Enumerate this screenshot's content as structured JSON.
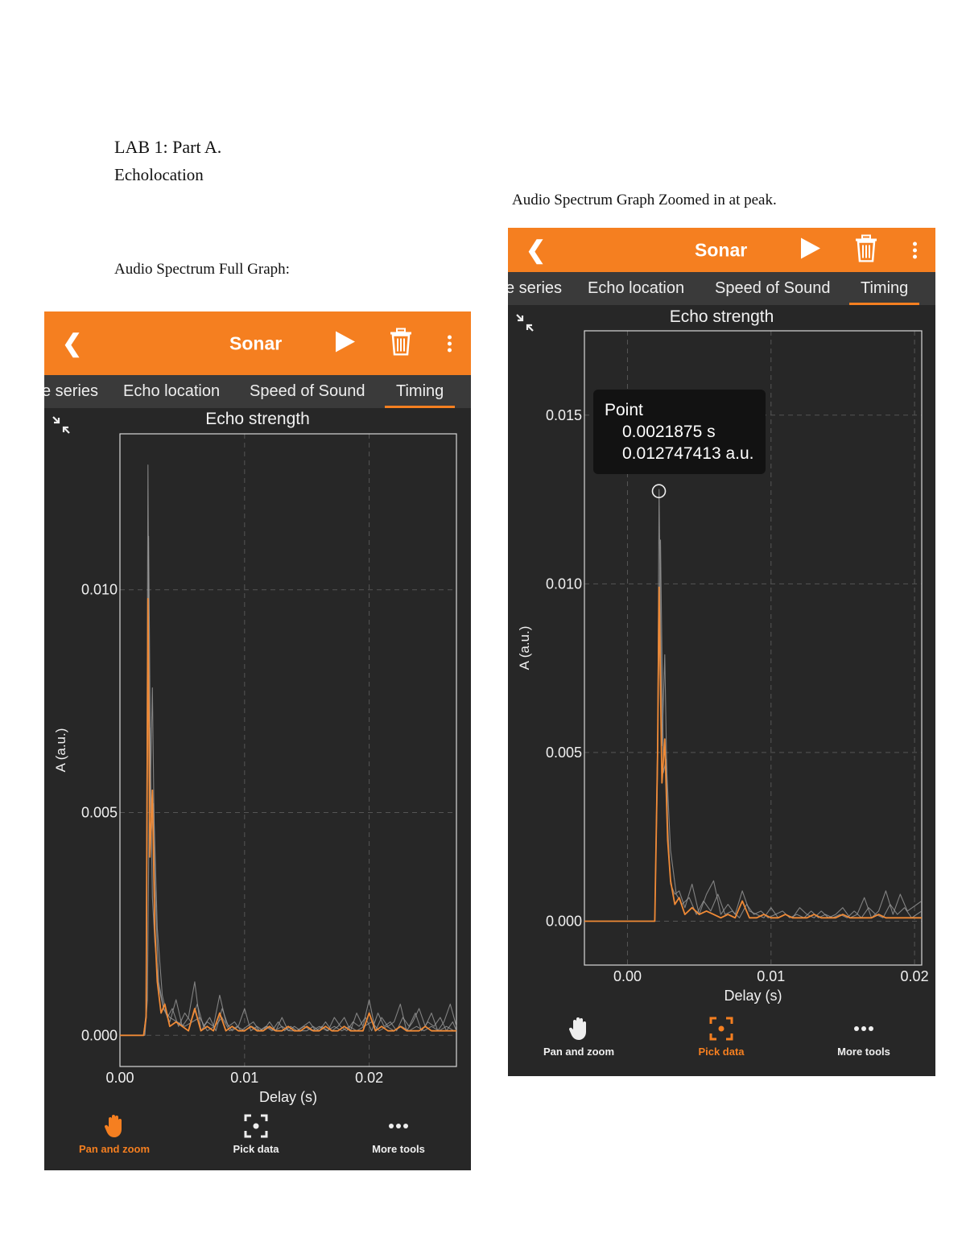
{
  "document": {
    "title": "LAB 1: Part A.",
    "subtitle": "Echolocation",
    "caption_full": "Audio Spectrum Full Graph:",
    "caption_zoom": "Audio Spectrum Graph Zoomed in at peak."
  },
  "screens": [
    {
      "app_title": "Sonar",
      "tabs": [
        "e series",
        "Echo location",
        "Speed of Sound",
        "Timing"
      ],
      "active_tab": "Timing",
      "graph_title": "Echo strength",
      "toolbar": {
        "pan": "Pan and zoom",
        "pick": "Pick data",
        "more": "More tools",
        "active": "pan"
      }
    },
    {
      "app_title": "Sonar",
      "tabs": [
        "e series",
        "Echo location",
        "Speed of Sound",
        "Timing"
      ],
      "active_tab": "Timing",
      "graph_title": "Echo strength",
      "toolbar": {
        "pan": "Pan and zoom",
        "pick": "Pick data",
        "more": "More tools",
        "active": "pick"
      },
      "tooltip": {
        "label": "Point",
        "x_value": "0.0021875 s",
        "y_value": "0.012747413 a.u."
      }
    }
  ],
  "colors": {
    "accent": "#f57f20",
    "background": "#272727",
    "tab_bar": "#3a3a3a",
    "series_gray": "#9a9a9a",
    "series_current": "#f08a36"
  },
  "chart_data": [
    {
      "type": "line",
      "title": "Echo strength",
      "xlabel": "Delay (s)",
      "ylabel": "A (a.u.)",
      "xlim": [
        0.0,
        0.027
      ],
      "ylim": [
        -0.0007,
        0.0135
      ],
      "xticks": [
        "0.00",
        "0.01",
        "0.02"
      ],
      "xtick_values": [
        0.0,
        0.01,
        0.02
      ],
      "yticks": [
        "0.000",
        "0.005",
        "0.010"
      ],
      "ytick_values": [
        0.0,
        0.005,
        0.01
      ],
      "grid": true,
      "series": [
        {
          "role": "history",
          "x": [
            0.0,
            0.0019,
            0.0021,
            0.00225,
            0.0024,
            0.0026,
            0.0028,
            0.0031,
            0.0035,
            0.004,
            0.0045,
            0.005,
            0.0055,
            0.006,
            0.0065,
            0.007,
            0.0075,
            0.008,
            0.0085,
            0.009,
            0.0095,
            0.01,
            0.0105,
            0.011,
            0.0115,
            0.012,
            0.0125,
            0.013,
            0.0135,
            0.014,
            0.0145,
            0.015,
            0.0155,
            0.016,
            0.0165,
            0.017,
            0.0175,
            0.018,
            0.0185,
            0.019,
            0.0195,
            0.02,
            0.0205,
            0.021,
            0.0215,
            0.022,
            0.0225,
            0.023,
            0.0235,
            0.024,
            0.0245,
            0.025,
            0.0255,
            0.026,
            0.0265,
            0.027
          ],
          "y": [
            0.0,
            0.0,
            0.0005,
            0.0128,
            0.005,
            0.0078,
            0.0035,
            0.0012,
            0.0006,
            0.0003,
            0.0008,
            0.0002,
            0.0004,
            0.0012,
            0.0001,
            0.0003,
            0.0002,
            0.0009,
            0.0003,
            0.0001,
            0.0002,
            0.0006,
            0.0001,
            0.0002,
            0.0001,
            0.0003,
            0.0001,
            0.0004,
            0.0001,
            0.0002,
            0.0001,
            0.0001,
            0.0002,
            0.0001,
            0.0003,
            0.0001,
            0.0002,
            0.0004,
            0.0001,
            0.0005,
            0.0002,
            0.0008,
            0.0001,
            0.0004,
            0.0002,
            0.0003,
            0.0007,
            0.0001,
            0.0003,
            0.0006,
            0.0002,
            0.0005,
            0.0001,
            0.0003,
            0.0007,
            0.0002
          ]
        },
        {
          "role": "history",
          "x": [
            0.0,
            0.0019,
            0.0021,
            0.0023,
            0.0025,
            0.0027,
            0.003,
            0.0034,
            0.0038,
            0.0042,
            0.0047,
            0.0052,
            0.0057,
            0.0062,
            0.0067,
            0.0072,
            0.0077,
            0.0082,
            0.0087,
            0.0092,
            0.0097,
            0.0102,
            0.0107,
            0.0112,
            0.0117,
            0.0122,
            0.0127,
            0.0132,
            0.0137,
            0.0142,
            0.0147,
            0.0152,
            0.0157,
            0.0162,
            0.0167,
            0.0172,
            0.0177,
            0.0182,
            0.0187,
            0.0192,
            0.0197,
            0.0202,
            0.0207,
            0.0212,
            0.0217,
            0.0222,
            0.0227,
            0.0232,
            0.0237,
            0.0242,
            0.0247,
            0.0252,
            0.0257,
            0.0262,
            0.0267,
            0.027
          ],
          "y": [
            0.0,
            0.0,
            0.0004,
            0.0112,
            0.0045,
            0.0052,
            0.0024,
            0.0009,
            0.0004,
            0.0006,
            0.0002,
            0.0005,
            0.0003,
            0.0007,
            0.0002,
            0.0004,
            0.0001,
            0.0006,
            0.0002,
            0.0003,
            0.0001,
            0.0002,
            0.0003,
            0.0001,
            0.0002,
            0.0001,
            0.0003,
            0.0001,
            0.0002,
            0.0001,
            0.0002,
            0.0003,
            0.0001,
            0.0002,
            0.0001,
            0.0004,
            0.0002,
            0.0001,
            0.0003,
            0.0002,
            0.0004,
            0.0001,
            0.0005,
            0.0002,
            0.0003,
            0.0001,
            0.0004,
            0.0002,
            0.0005,
            0.0001,
            0.0003,
            0.0002,
            0.0004,
            0.0001,
            0.0003,
            0.0001
          ]
        },
        {
          "role": "history",
          "x": [
            0.0,
            0.002,
            0.0022,
            0.0024,
            0.0026,
            0.0028,
            0.0031,
            0.0035,
            0.004,
            0.0046,
            0.0052,
            0.0058,
            0.0064,
            0.007,
            0.0076,
            0.0082,
            0.0088,
            0.0094,
            0.01,
            0.0106,
            0.0112,
            0.0118,
            0.0124,
            0.013,
            0.0136,
            0.0142,
            0.0148,
            0.0154,
            0.016,
            0.0166,
            0.0172,
            0.0178,
            0.0184,
            0.019,
            0.0196,
            0.0202,
            0.0208,
            0.0214,
            0.022,
            0.0226,
            0.0232,
            0.0238,
            0.0244,
            0.025,
            0.0256,
            0.0262,
            0.0268,
            0.027
          ],
          "y": [
            0.0,
            0.0,
            0.0008,
            0.0069,
            0.0031,
            0.0021,
            0.0011,
            0.0006,
            0.0004,
            0.0003,
            0.0002,
            0.0003,
            0.0004,
            0.0001,
            0.0002,
            0.0004,
            0.0001,
            0.0002,
            0.0001,
            0.0002,
            0.0001,
            0.0002,
            0.0001,
            0.0002,
            0.0001,
            0.0001,
            0.0002,
            0.0001,
            0.0002,
            0.0001,
            0.0002,
            0.0001,
            0.0002,
            0.0001,
            0.0002,
            0.0003,
            0.0001,
            0.0002,
            0.0001,
            0.0002,
            0.0001,
            0.0002,
            0.0001,
            0.0002,
            0.0001,
            0.0002,
            0.0001,
            0.0001
          ]
        },
        {
          "role": "current",
          "x": [
            0.0,
            0.0019,
            0.0021,
            0.00225,
            0.0024,
            0.0026,
            0.0028,
            0.003,
            0.0033,
            0.0036,
            0.004,
            0.0045,
            0.005,
            0.0055,
            0.006,
            0.0065,
            0.007,
            0.0075,
            0.008,
            0.0085,
            0.009,
            0.0095,
            0.01,
            0.0105,
            0.011,
            0.0115,
            0.012,
            0.0125,
            0.013,
            0.0135,
            0.014,
            0.0145,
            0.015,
            0.0155,
            0.016,
            0.0165,
            0.017,
            0.0175,
            0.018,
            0.0185,
            0.019,
            0.0195,
            0.02,
            0.0205,
            0.021,
            0.0215,
            0.022,
            0.0225,
            0.023,
            0.0235,
            0.024,
            0.0245,
            0.025,
            0.0255,
            0.026,
            0.0265,
            0.027
          ],
          "y": [
            0.0,
            0.0,
            0.0004,
            0.0098,
            0.004,
            0.0055,
            0.0024,
            0.0012,
            0.0005,
            0.0007,
            0.0002,
            0.0003,
            0.0002,
            0.0001,
            0.0006,
            0.0001,
            0.0002,
            0.0001,
            0.0005,
            0.0001,
            0.0002,
            0.0001,
            0.0001,
            0.0002,
            0.0001,
            0.0001,
            0.0002,
            0.0001,
            0.0001,
            0.0002,
            0.0001,
            0.0001,
            0.0002,
            0.0001,
            0.0001,
            0.0002,
            0.0001,
            0.0001,
            0.0002,
            0.0001,
            0.0001,
            0.0001,
            0.0005,
            0.0001,
            0.0002,
            0.0001,
            0.0001,
            0.0002,
            0.0001,
            0.0001,
            0.0001,
            0.0002,
            0.0001,
            0.0001,
            0.0001,
            0.0001,
            0.0001
          ]
        }
      ]
    },
    {
      "type": "line",
      "title": "Echo strength",
      "xlabel": "Delay (s)",
      "ylabel": "A (a.u.)",
      "xlim": [
        -0.003,
        0.0205
      ],
      "ylim": [
        -0.0013,
        0.0175
      ],
      "xticks": [
        "0.00",
        "0.01",
        "0.02"
      ],
      "xtick_values": [
        0.0,
        0.01,
        0.02
      ],
      "yticks": [
        "0.000",
        "0.005",
        "0.010",
        "0.015"
      ],
      "ytick_values": [
        0.0,
        0.005,
        0.01,
        0.015
      ],
      "grid": true,
      "highlighted_point": {
        "x": 0.0021875,
        "y": 0.012747413
      },
      "series": [
        {
          "role": "history",
          "x": [
            -0.003,
            0.0019,
            0.0021,
            0.0022,
            0.0024,
            0.0026,
            0.0028,
            0.003,
            0.0033,
            0.0036,
            0.004,
            0.0045,
            0.005,
            0.0055,
            0.006,
            0.0065,
            0.007,
            0.0075,
            0.008,
            0.0085,
            0.009,
            0.0095,
            0.01,
            0.0105,
            0.011,
            0.0115,
            0.012,
            0.0125,
            0.013,
            0.0135,
            0.014,
            0.0145,
            0.015,
            0.0155,
            0.016,
            0.0165,
            0.017,
            0.0175,
            0.018,
            0.0185,
            0.019,
            0.0195,
            0.0205
          ],
          "y": [
            0.0,
            0.0,
            0.0046,
            0.0128,
            0.0052,
            0.0079,
            0.0029,
            0.0011,
            0.0008,
            0.0009,
            0.0004,
            0.0011,
            0.0002,
            0.0008,
            0.0012,
            0.0002,
            0.0005,
            0.0002,
            0.0009,
            0.0003,
            0.0002,
            0.0001,
            0.0004,
            0.0001,
            0.0002,
            0.0001,
            0.0004,
            0.0002,
            0.0001,
            0.0003,
            0.0001,
            0.0002,
            0.0004,
            0.0001,
            0.0002,
            0.0007,
            0.0001,
            0.0003,
            0.0009,
            0.0002,
            0.0008,
            0.0003,
            0.0006
          ]
        },
        {
          "role": "history",
          "x": [
            -0.003,
            0.0019,
            0.0021,
            0.0023,
            0.0025,
            0.0027,
            0.003,
            0.0034,
            0.0038,
            0.0043,
            0.0048,
            0.0053,
            0.0058,
            0.0063,
            0.0068,
            0.0073,
            0.0078,
            0.0083,
            0.0088,
            0.0093,
            0.0098,
            0.0103,
            0.0108,
            0.0113,
            0.0118,
            0.0123,
            0.0128,
            0.0133,
            0.0138,
            0.0143,
            0.0148,
            0.0153,
            0.0158,
            0.0163,
            0.0168,
            0.0173,
            0.0178,
            0.0183,
            0.0188,
            0.0193,
            0.0198,
            0.0205
          ],
          "y": [
            0.0,
            0.0,
            0.0054,
            0.0113,
            0.0044,
            0.0048,
            0.0021,
            0.0008,
            0.0005,
            0.0007,
            0.0002,
            0.0006,
            0.0003,
            0.0008,
            0.0002,
            0.0003,
            0.0001,
            0.0005,
            0.0002,
            0.0003,
            0.0001,
            0.0002,
            0.0003,
            0.0001,
            0.0002,
            0.0001,
            0.0003,
            0.0001,
            0.0002,
            0.0001,
            0.0002,
            0.0001,
            0.0003,
            0.0001,
            0.0004,
            0.0002,
            0.0001,
            0.0005,
            0.0002,
            0.0004,
            0.0001,
            0.0003
          ]
        },
        {
          "role": "current",
          "x": [
            -0.003,
            0.0019,
            0.0021,
            0.0022,
            0.0024,
            0.0026,
            0.0028,
            0.003,
            0.0033,
            0.0036,
            0.004,
            0.0045,
            0.005,
            0.0055,
            0.006,
            0.0065,
            0.007,
            0.0075,
            0.008,
            0.0085,
            0.009,
            0.0095,
            0.01,
            0.0105,
            0.011,
            0.0115,
            0.012,
            0.0125,
            0.013,
            0.0135,
            0.014,
            0.0145,
            0.015,
            0.0155,
            0.016,
            0.0165,
            0.017,
            0.0175,
            0.018,
            0.0185,
            0.019,
            0.0195,
            0.0205
          ],
          "y": [
            0.0,
            0.0,
            0.005,
            0.0099,
            0.0041,
            0.0054,
            0.0024,
            0.0012,
            0.0005,
            0.0007,
            0.0002,
            0.0004,
            0.0002,
            0.0003,
            0.0002,
            0.0001,
            0.0002,
            0.0001,
            0.0006,
            0.0001,
            0.0001,
            0.0002,
            0.0001,
            0.0001,
            0.0002,
            0.0001,
            0.0001,
            0.0001,
            0.0002,
            0.0001,
            0.0001,
            0.0001,
            0.0002,
            0.0001,
            0.0001,
            0.0001,
            0.0001,
            0.0002,
            0.0001,
            0.0001,
            0.0001,
            0.0001,
            0.0001
          ]
        }
      ]
    }
  ]
}
